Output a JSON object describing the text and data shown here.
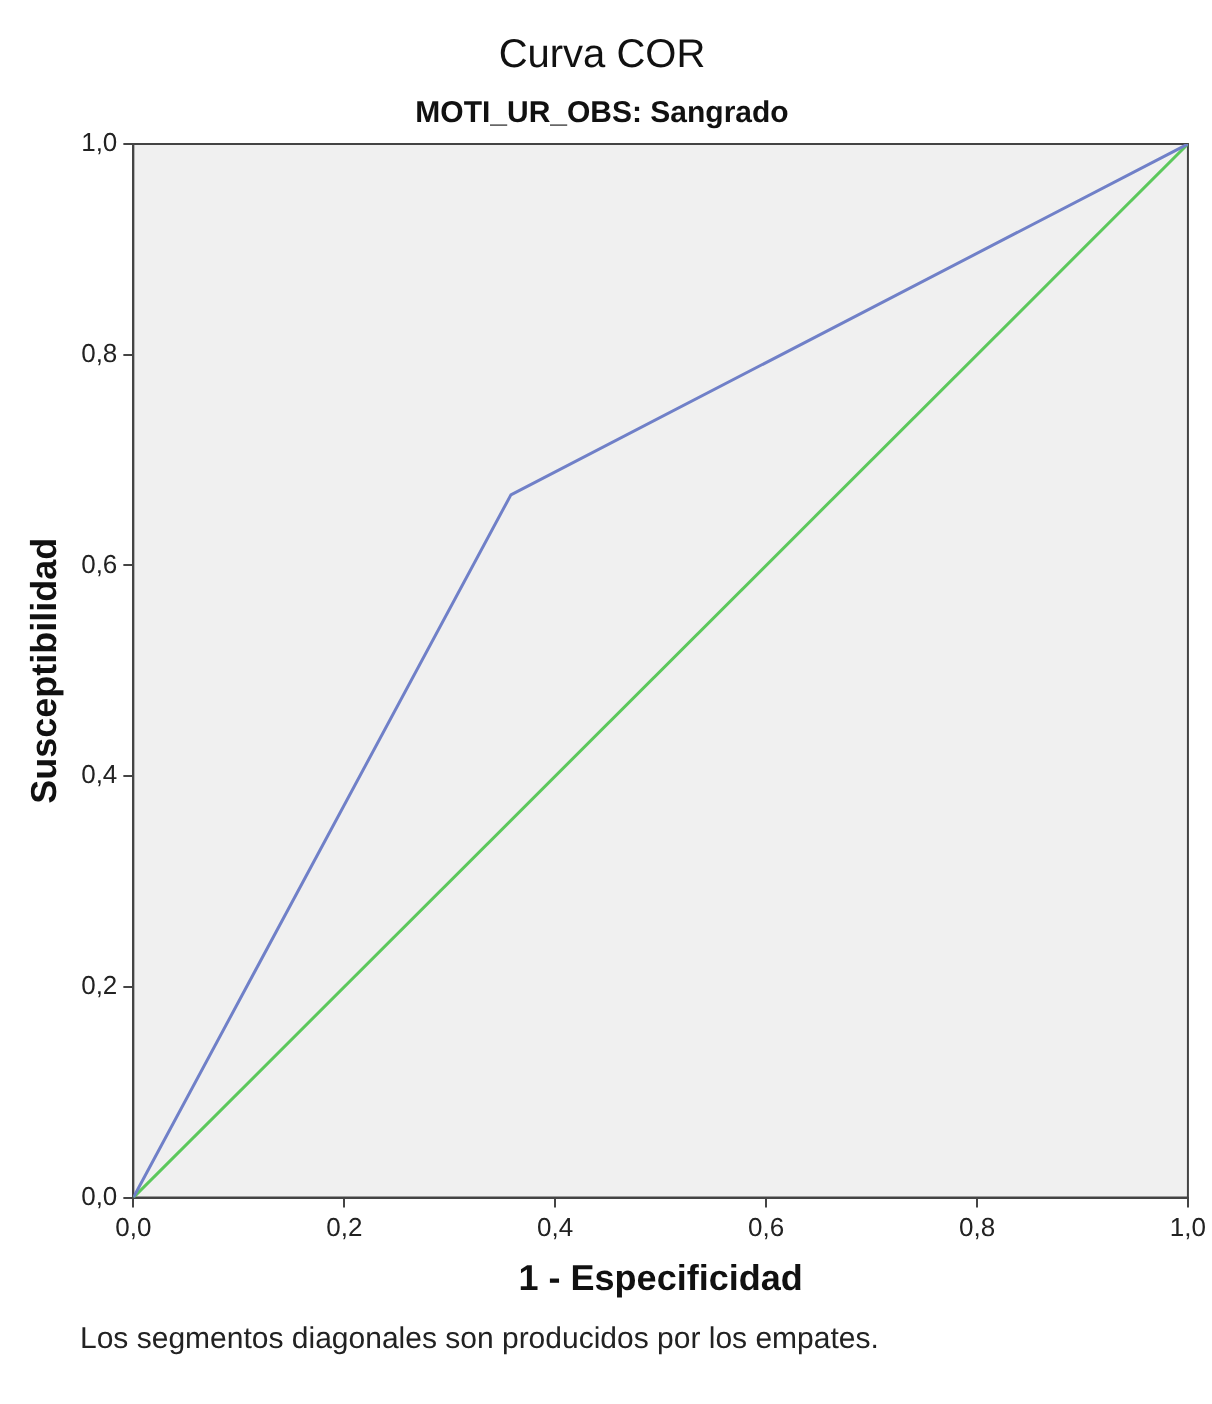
{
  "chart_data": {
    "type": "line",
    "title": "Curva COR",
    "subtitle": "MOTI_UR_OBS: Sangrado",
    "xlabel": "1 - Especificidad",
    "ylabel": "Susceptibilidad",
    "series": [
      {
        "color": "#7080c8",
        "x": [
          0,
          0.358,
          1
        ],
        "values": [
          0,
          0.667,
          1
        ]
      },
      {
        "color": "#5cc85c",
        "x": [
          0,
          1
        ],
        "values": [
          0,
          1
        ]
      }
    ],
    "xlim": [
      0,
      1
    ],
    "ylim": [
      0,
      1
    ],
    "xticks": [
      {
        "value": 0,
        "label": "0,0"
      },
      {
        "value": 0.2,
        "label": "0,2"
      },
      {
        "value": 0.4,
        "label": "0,4"
      },
      {
        "value": 0.6,
        "label": "0,6"
      },
      {
        "value": 0.8,
        "label": "0,8"
      },
      {
        "value": 1,
        "label": "1,0"
      }
    ],
    "yticks": [
      {
        "value": 0,
        "label": "0,0"
      },
      {
        "value": 0.2,
        "label": "0,2"
      },
      {
        "value": 0.4,
        "label": "0,4"
      },
      {
        "value": 0.6,
        "label": "0,6"
      },
      {
        "value": 0.8,
        "label": "0,8"
      },
      {
        "value": 1,
        "label": "1,0"
      }
    ],
    "grid": false,
    "legend": false,
    "marker": "none",
    "line_style": "solid",
    "annotations": [
      "Los segmentos diagonales son producidos por los empates."
    ]
  }
}
